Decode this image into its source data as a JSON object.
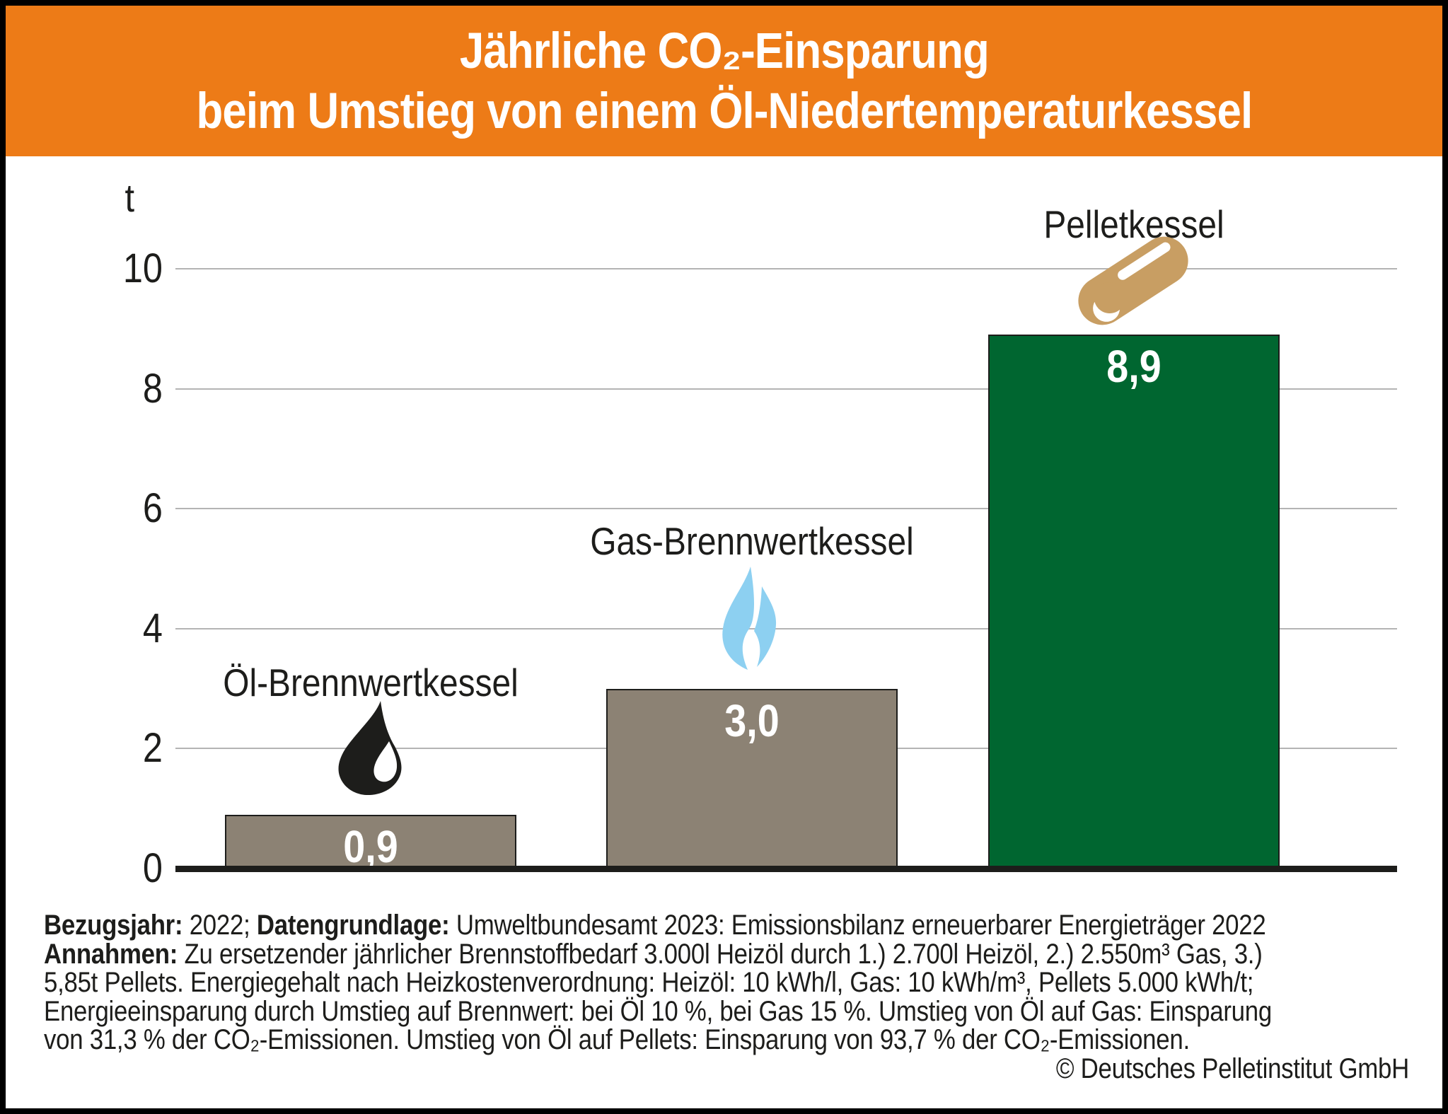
{
  "title": {
    "line1": "Jährliche CO₂-Einsparung",
    "line2": "beim Umstieg von einem Öl-Niedertemperaturkessel"
  },
  "y_axis": {
    "unit": "t",
    "ticks": [
      "10",
      "8",
      "6",
      "4",
      "2",
      "0"
    ]
  },
  "bars": [
    {
      "label": "Öl-Brennwertkessel",
      "value_label": "0,9",
      "color": "#8c8274",
      "icon": "oil-drop"
    },
    {
      "label": "Gas-Brennwertkessel",
      "value_label": "3,0",
      "color": "#8c8274",
      "icon": "gas-flame"
    },
    {
      "label": "Pelletkessel",
      "value_label": "8,9",
      "color": "#006630",
      "icon": "pellet"
    }
  ],
  "footnote": {
    "lines": [
      [
        {
          "bold": true,
          "text": "Bezugsjahr:"
        },
        {
          "bold": false,
          "text": " 2022; "
        },
        {
          "bold": true,
          "text": "Datengrundlage:"
        },
        {
          "bold": false,
          "text": " Umweltbundesamt 2023: Emissionsbilanz erneuerbarer Energieträger 2022"
        }
      ],
      [
        {
          "bold": true,
          "text": "Annahmen:"
        },
        {
          "bold": false,
          "text": " Zu ersetzender jährlicher Brennstoffbedarf 3.000l Heizöl durch 1.) 2.700l Heizöl, 2.) 2.550m³ Gas, 3.)"
        }
      ],
      [
        {
          "bold": false,
          "text": "5,85t Pellets. Energiegehalt nach Heizkostenverordnung: Heizöl: 10 kWh/l, Gas: 10 kWh/m³, Pellets 5.000 kWh/t;"
        }
      ],
      [
        {
          "bold": false,
          "text": "Energieeinsparung durch Umstieg auf Brennwert: bei Öl 10 %, bei Gas 15 %. Umstieg von Öl auf Gas: Einsparung"
        }
      ],
      [
        {
          "bold": false,
          "text": "von 31,3 % der CO₂-Emissionen. Umstieg von Öl auf Pellets: Einsparung von 93,7 % der CO₂-Emissionen."
        }
      ]
    ]
  },
  "copyright": "© Deutsches Pelletinstitut GmbH",
  "colors": {
    "header_orange": "#ed7b17",
    "bar_taupe": "#8c8274",
    "bar_green": "#006630",
    "flame_blue": "#8dd0f1",
    "pellet_tan": "#c89e63",
    "grid_gray": "#b4b4b4",
    "ink": "#1d1d1b"
  },
  "chart_data": {
    "type": "bar",
    "title": "Jährliche CO₂-Einsparung beim Umstieg von einem Öl-Niedertemperaturkessel",
    "categories": [
      "Öl-Brennwertkessel",
      "Gas-Brennwertkessel",
      "Pelletkessel"
    ],
    "values": [
      0.9,
      3.0,
      8.9
    ],
    "value_labels": [
      "0,9",
      "3,0",
      "8,9"
    ],
    "bar_colors": [
      "#8c8274",
      "#8c8274",
      "#006630"
    ],
    "ylabel": "t",
    "xlabel": "",
    "ylim": [
      0,
      10
    ],
    "ytick_values": [
      0,
      2,
      4,
      6,
      8,
      10
    ],
    "grid": true,
    "legend": false
  }
}
